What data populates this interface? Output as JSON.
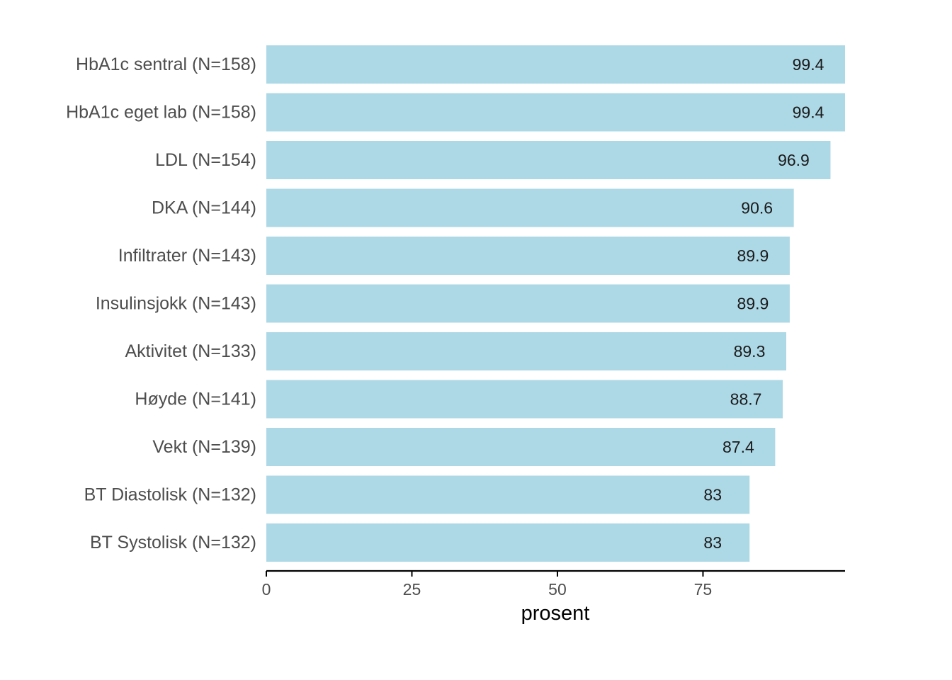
{
  "chart_data": {
    "type": "bar",
    "orientation": "horizontal",
    "categories": [
      "HbA1c sentral (N=158)",
      "HbA1c eget lab (N=158)",
      "LDL (N=154)",
      "DKA (N=144)",
      "Infiltrater (N=143)",
      "Insulinsjokk (N=143)",
      "Aktivitet (N=133)",
      "Høyde (N=141)",
      "Vekt (N=139)",
      "BT Diastolisk (N=132)",
      "BT Systolisk (N=132)"
    ],
    "values": [
      99.4,
      99.4,
      96.9,
      90.6,
      89.9,
      89.9,
      89.3,
      88.7,
      87.4,
      83,
      83
    ],
    "value_labels": [
      "99.4",
      "99.4",
      "96.9",
      "90.6",
      "89.9",
      "89.9",
      "89.3",
      "88.7",
      "87.4",
      "83",
      "83"
    ],
    "xlabel": "prosent",
    "xticks": [
      0,
      25,
      50,
      75
    ],
    "xlim": [
      0,
      99.4
    ],
    "grid": false,
    "legend": "none",
    "colors": {
      "bar": "#add8e6",
      "axis": "#000000"
    }
  }
}
